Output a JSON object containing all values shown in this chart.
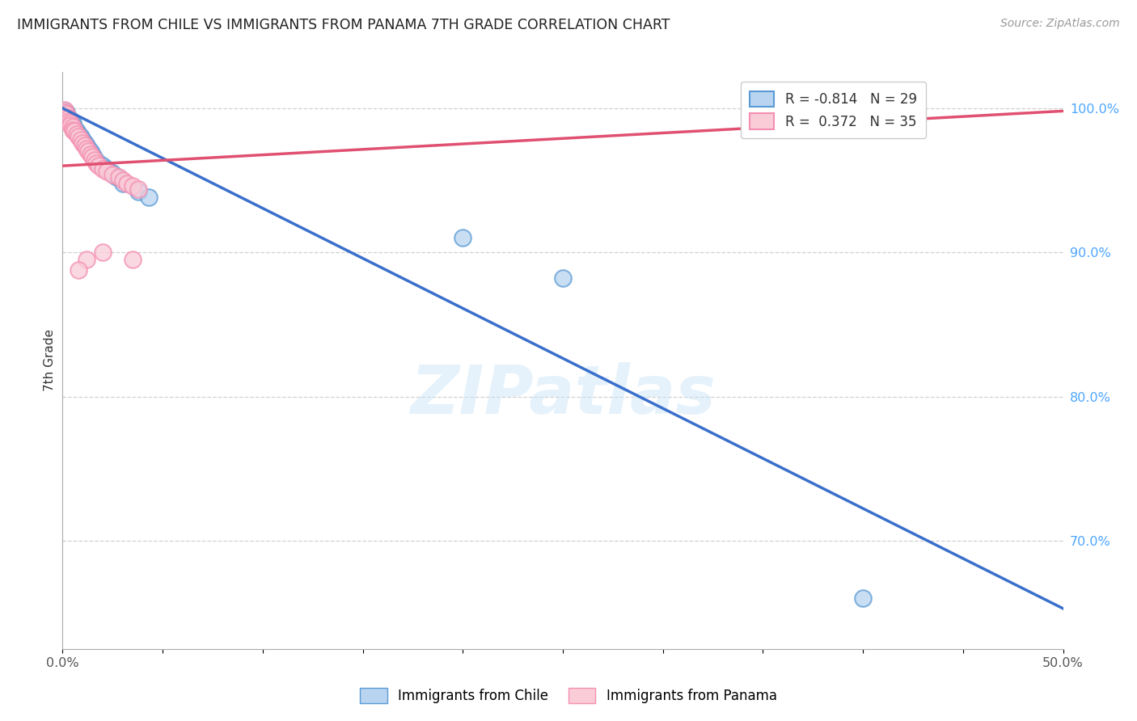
{
  "title": "IMMIGRANTS FROM CHILE VS IMMIGRANTS FROM PANAMA 7TH GRADE CORRELATION CHART",
  "source": "Source: ZipAtlas.com",
  "ylabel_left": "7th Grade",
  "ylabel_right_ticks": [
    "100.0%",
    "90.0%",
    "80.0%",
    "70.0%"
  ],
  "ylabel_right_vals": [
    1.0,
    0.9,
    0.8,
    0.7
  ],
  "xlim": [
    0.0,
    0.5
  ],
  "ylim": [
    0.625,
    1.025
  ],
  "watermark": "ZIPatlas",
  "blue_color": "#5b9bd5",
  "pink_color": "#f48fb1",
  "blue_scatter_x": [
    0.001,
    0.002,
    0.002,
    0.003,
    0.004,
    0.005,
    0.005,
    0.006,
    0.007,
    0.008,
    0.009,
    0.01,
    0.011,
    0.012,
    0.013,
    0.014,
    0.015,
    0.016,
    0.018,
    0.02,
    0.022,
    0.025,
    0.027,
    0.03,
    0.038,
    0.043,
    0.2,
    0.25,
    0.4
  ],
  "blue_scatter_y": [
    0.998,
    0.997,
    0.995,
    0.993,
    0.992,
    0.99,
    0.988,
    0.986,
    0.984,
    0.982,
    0.98,
    0.978,
    0.976,
    0.974,
    0.972,
    0.97,
    0.968,
    0.965,
    0.962,
    0.96,
    0.958,
    0.955,
    0.952,
    0.948,
    0.942,
    0.938,
    0.91,
    0.882,
    0.66
  ],
  "pink_scatter_x": [
    0.001,
    0.001,
    0.002,
    0.002,
    0.003,
    0.003,
    0.004,
    0.004,
    0.005,
    0.005,
    0.006,
    0.007,
    0.008,
    0.009,
    0.01,
    0.011,
    0.012,
    0.013,
    0.014,
    0.015,
    0.016,
    0.017,
    0.018,
    0.02,
    0.022,
    0.025,
    0.028,
    0.03,
    0.032,
    0.035,
    0.038,
    0.02,
    0.012,
    0.008,
    0.035
  ],
  "pink_scatter_y": [
    0.999,
    0.997,
    0.996,
    0.994,
    0.993,
    0.991,
    0.99,
    0.988,
    0.987,
    0.985,
    0.984,
    0.982,
    0.98,
    0.978,
    0.976,
    0.974,
    0.972,
    0.97,
    0.968,
    0.966,
    0.964,
    0.962,
    0.96,
    0.958,
    0.956,
    0.954,
    0.952,
    0.95,
    0.948,
    0.946,
    0.944,
    0.9,
    0.895,
    0.888,
    0.895
  ],
  "blue_line_x": [
    0.0,
    0.5
  ],
  "blue_line_y": [
    1.0,
    0.653
  ],
  "pink_line_x": [
    0.0,
    0.5
  ],
  "pink_line_y": [
    0.96,
    0.998
  ],
  "grid_color": "#d0d0d0",
  "background_color": "#ffffff",
  "legend_blue_label": "R = -0.814   N = 29",
  "legend_pink_label": "R =  0.372   N = 35",
  "bottom_legend_blue": "Immigrants from Chile",
  "bottom_legend_pink": "Immigrants from Panama"
}
